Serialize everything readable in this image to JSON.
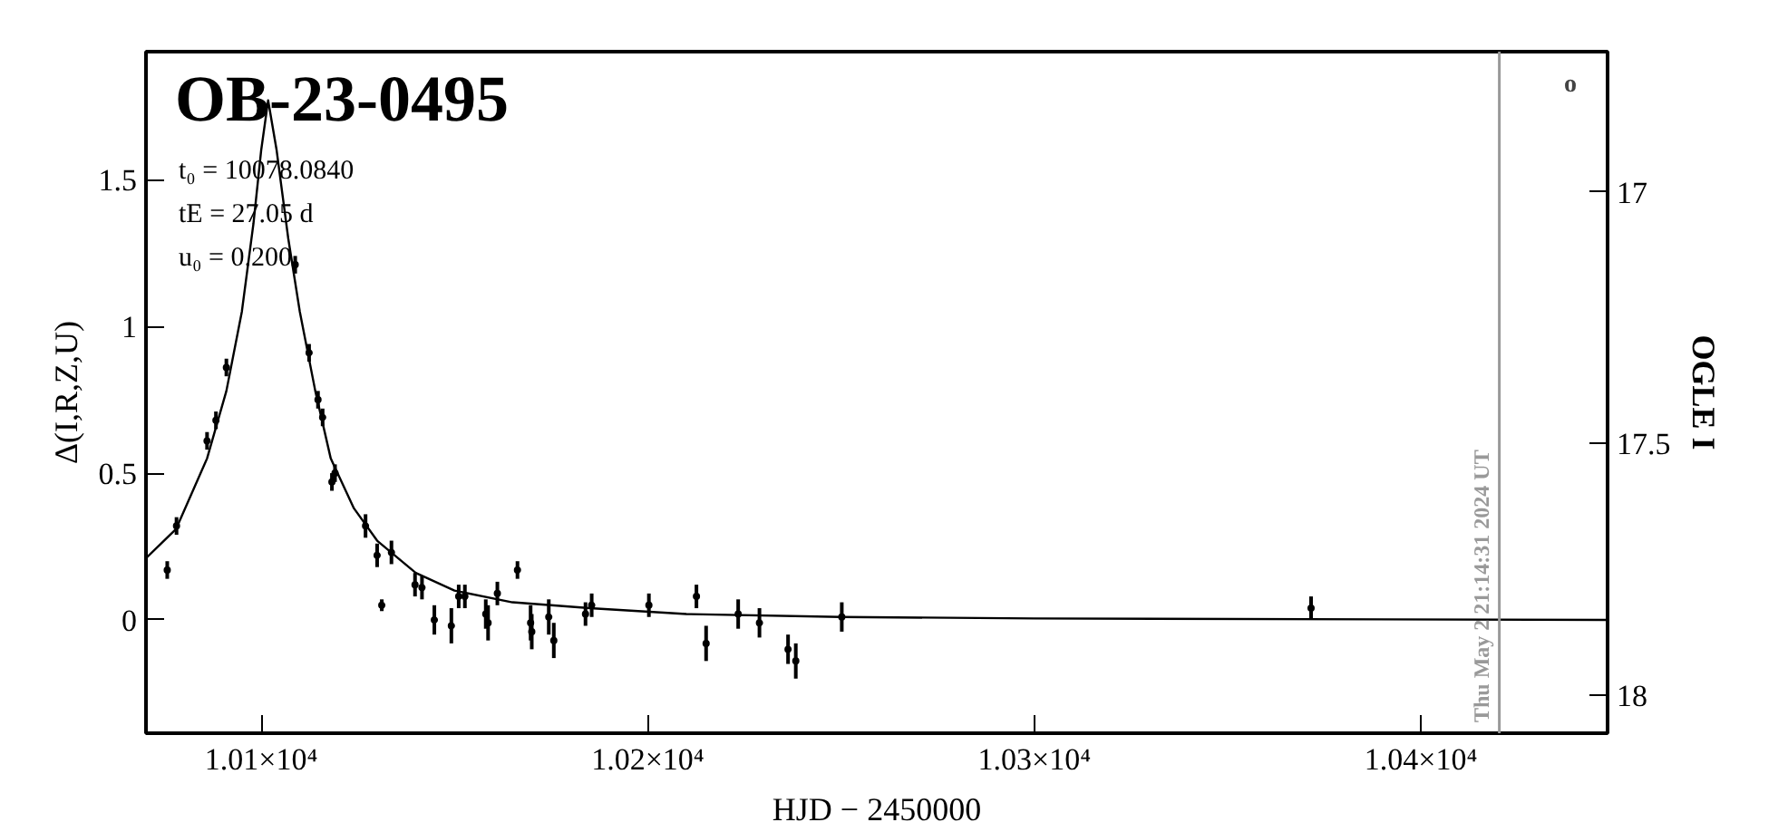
{
  "chart_data": {
    "type": "scatter",
    "xlabel": "HJD − 2450000",
    "ylabel": "Δ(I,R,Z,U)",
    "y2label": "OGLE I",
    "xlim": [
      10070.2,
      10448.3
    ],
    "ylim": [
      -0.386,
      1.936
    ],
    "y2lim": [
      18.076,
      16.721
    ],
    "xticks": [
      {
        "value": 10100,
        "label": "1.01×10⁴"
      },
      {
        "value": 10200,
        "label": "1.02×10⁴"
      },
      {
        "value": 10300,
        "label": "1.03×10⁴"
      },
      {
        "value": 10400,
        "label": "1.04×10⁴"
      }
    ],
    "yticks": [
      0,
      0.5,
      1,
      1.5
    ],
    "y2ticks": [
      17,
      17.5,
      18
    ],
    "grid": false,
    "marker": "circle",
    "series": [
      {
        "color": "#000000",
        "x": [
          10075.7,
          10078.1,
          10086.0,
          10088.3,
          10091.0,
          10108.8,
          10112.4,
          10114.7,
          10115.9,
          10119.1,
          10118.3,
          10127.0,
          10130.0,
          10133.7,
          10131.2,
          10139.8,
          10141.6,
          10144.8,
          10149.2,
          10151.1,
          10152.7,
          10158.1,
          10158.7,
          10161.1,
          10166.3,
          10169.7,
          10170.0,
          10174.4,
          10175.7,
          10183.9,
          10185.5,
          10200.3,
          10212.6,
          10215.1,
          10223.4,
          10228.9,
          10236.3,
          10238.3,
          10250.2,
          10371.6
        ],
        "values": [
          0.17,
          0.32,
          0.61,
          0.68,
          0.86,
          1.21,
          0.91,
          0.75,
          0.69,
          0.5,
          0.47,
          0.32,
          0.22,
          0.23,
          0.05,
          0.12,
          0.11,
          0.0,
          -0.02,
          0.08,
          0.08,
          0.02,
          -0.01,
          0.09,
          0.17,
          -0.01,
          -0.04,
          0.01,
          -0.07,
          0.02,
          0.05,
          0.05,
          0.08,
          -0.08,
          0.02,
          -0.01,
          -0.1,
          -0.14,
          0.01,
          0.04
        ],
        "errors": [
          0.03,
          0.03,
          0.03,
          0.03,
          0.03,
          0.03,
          0.03,
          0.03,
          0.03,
          0.03,
          0.03,
          0.04,
          0.04,
          0.04,
          0.02,
          0.04,
          0.04,
          0.05,
          0.06,
          0.04,
          0.04,
          0.05,
          0.06,
          0.04,
          0.03,
          0.06,
          0.06,
          0.06,
          0.06,
          0.04,
          0.04,
          0.04,
          0.04,
          0.06,
          0.05,
          0.05,
          0.05,
          0.06,
          0.05,
          0.04
        ]
      },
      {
        "type": "line",
        "color": "#000000",
        "line_style": "solid",
        "marker": "none",
        "x": [
          10070.2,
          10078,
          10086,
          10091,
          10095,
          10098,
          10100,
          10101.8,
          10104,
          10107,
          10110,
          10114,
          10118,
          10124,
          10130,
          10140,
          10150,
          10165,
          10185,
          10210,
          10250,
          10300,
          10448.3
        ],
        "values": [
          0.21,
          0.31,
          0.55,
          0.78,
          1.05,
          1.35,
          1.6,
          1.77,
          1.6,
          1.3,
          1.05,
          0.78,
          0.55,
          0.38,
          0.27,
          0.16,
          0.1,
          0.06,
          0.04,
          0.02,
          0.01,
          0.005,
          0.0
        ]
      }
    ],
    "ref_lines": [
      {
        "axis": "x",
        "value": 10420.3,
        "color": "#999999"
      }
    ],
    "annotations": [
      "OB-23-0495",
      "t₀ = 10078.0840",
      "tE = 27.05 d",
      "u₀ = 0.200",
      "o",
      {
        "text": "Thu May  2 21:14:31 2024 UT",
        "x": 10420.3,
        "y": -0.386
      }
    ]
  }
}
